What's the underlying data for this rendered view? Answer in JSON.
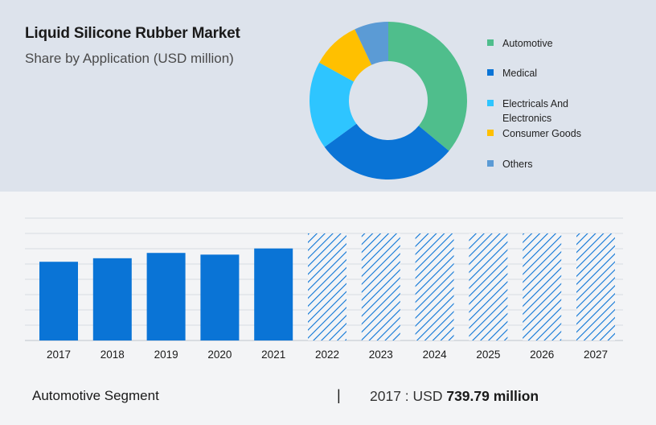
{
  "header": {
    "title": "Liquid Silicone Rubber Market",
    "subtitle": "Share by Application (USD million)"
  },
  "footer": {
    "segment": "Automotive Segment",
    "separator": "|",
    "year_label": "2017 : USD",
    "value": "739.79 million"
  },
  "colors": {
    "automotive": "#4fbe8c",
    "medical": "#0a74d6",
    "electricals": "#2ec5ff",
    "consumer": "#ffc000",
    "others": "#5b9bd5",
    "bar": "#0a74d6",
    "hatch": "#0a74d6"
  },
  "chart_data": [
    {
      "type": "pie",
      "donut": true,
      "slices": [
        {
          "label": "Automotive",
          "value": 36,
          "color": "#4fbe8c"
        },
        {
          "label": "Medical",
          "value": 29,
          "color": "#0a74d6"
        },
        {
          "label": "Electricals And Electronics",
          "value": 18,
          "color": "#2ec5ff"
        },
        {
          "label": "Consumer Goods",
          "value": 10,
          "color": "#ffc000"
        },
        {
          "label": "Others",
          "value": 7,
          "color": "#5b9bd5"
        }
      ],
      "legend_position": "right"
    },
    {
      "type": "bar",
      "categories": [
        "2017",
        "2018",
        "2019",
        "2020",
        "2021",
        "2022",
        "2023",
        "2024",
        "2025",
        "2026",
        "2027"
      ],
      "values": [
        739.79,
        773,
        823,
        807,
        865,
        null,
        null,
        null,
        null,
        null,
        null
      ],
      "forecast_categories": [
        "2022",
        "2023",
        "2024",
        "2025",
        "2026",
        "2027"
      ],
      "ylim": [
        0,
        1150
      ],
      "grid": true
    }
  ]
}
